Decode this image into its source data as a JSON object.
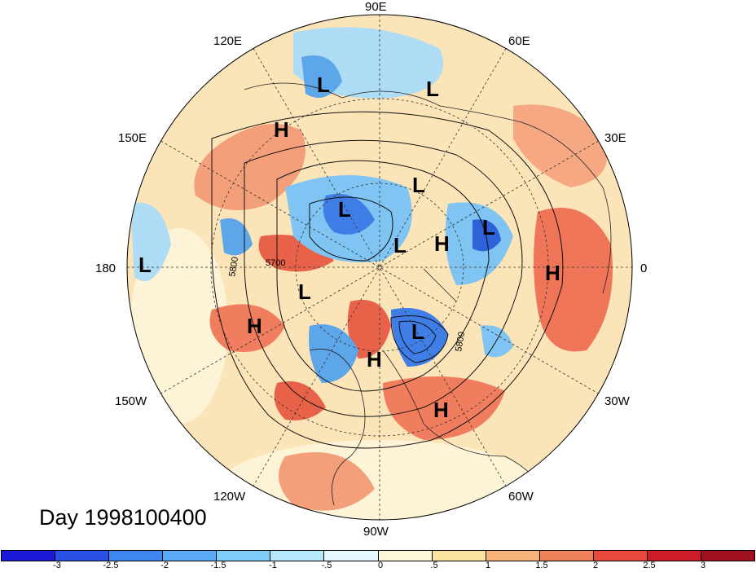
{
  "title": "Day 1998100400",
  "longitude_labels": [
    "90E",
    "60E",
    "30E",
    "0",
    "30W",
    "60W",
    "90W",
    "120W",
    "150W",
    "180",
    "150E",
    "120E"
  ],
  "contour_labels": [
    "5800",
    "5700",
    "5800"
  ],
  "pressure_centers": [
    {
      "type": "L",
      "name": "low-siberia-north"
    },
    {
      "type": "L",
      "name": "low-central-asia"
    },
    {
      "type": "H",
      "name": "high-east-asia"
    },
    {
      "type": "L",
      "name": "low-arctic-russia"
    },
    {
      "type": "L",
      "name": "low-arctic-east-siberia"
    },
    {
      "type": "L",
      "name": "low-arctic-pole"
    },
    {
      "type": "H",
      "name": "high-barents"
    },
    {
      "type": "L",
      "name": "low-scandinavia"
    },
    {
      "type": "L",
      "name": "low-dateline"
    },
    {
      "type": "H",
      "name": "high-atlantic-east"
    },
    {
      "type": "L",
      "name": "low-alaska"
    },
    {
      "type": "H",
      "name": "high-north-pacific"
    },
    {
      "type": "L",
      "name": "low-hudson"
    },
    {
      "type": "H",
      "name": "high-canada"
    },
    {
      "type": "H",
      "name": "high-atlantic-west"
    }
  ],
  "colorbar": {
    "ticks": [
      "-3",
      "-2.5",
      "-2",
      "-1.5",
      "-1",
      "-.5",
      "0",
      ".5",
      "1",
      "1.5",
      "2",
      "2.5",
      "3"
    ],
    "colors": [
      "#1a1ad6",
      "#2b50e6",
      "#3f86f0",
      "#5aaaf5",
      "#7fccf9",
      "#b5e8fb",
      "#e6f7fd",
      "#fdf8d8",
      "#fbe3a2",
      "#f7b27a",
      "#f0825a",
      "#e84a3e",
      "#cc1c2a",
      "#a0101e"
    ]
  },
  "map_colors": {
    "background_anomaly": "#fbe0b0",
    "warm": "#f3a07a",
    "warmer": "#e8624a",
    "cool": "#aedcf5",
    "cooler": "#5ea6ea",
    "coldest": "#2e62d8"
  }
}
